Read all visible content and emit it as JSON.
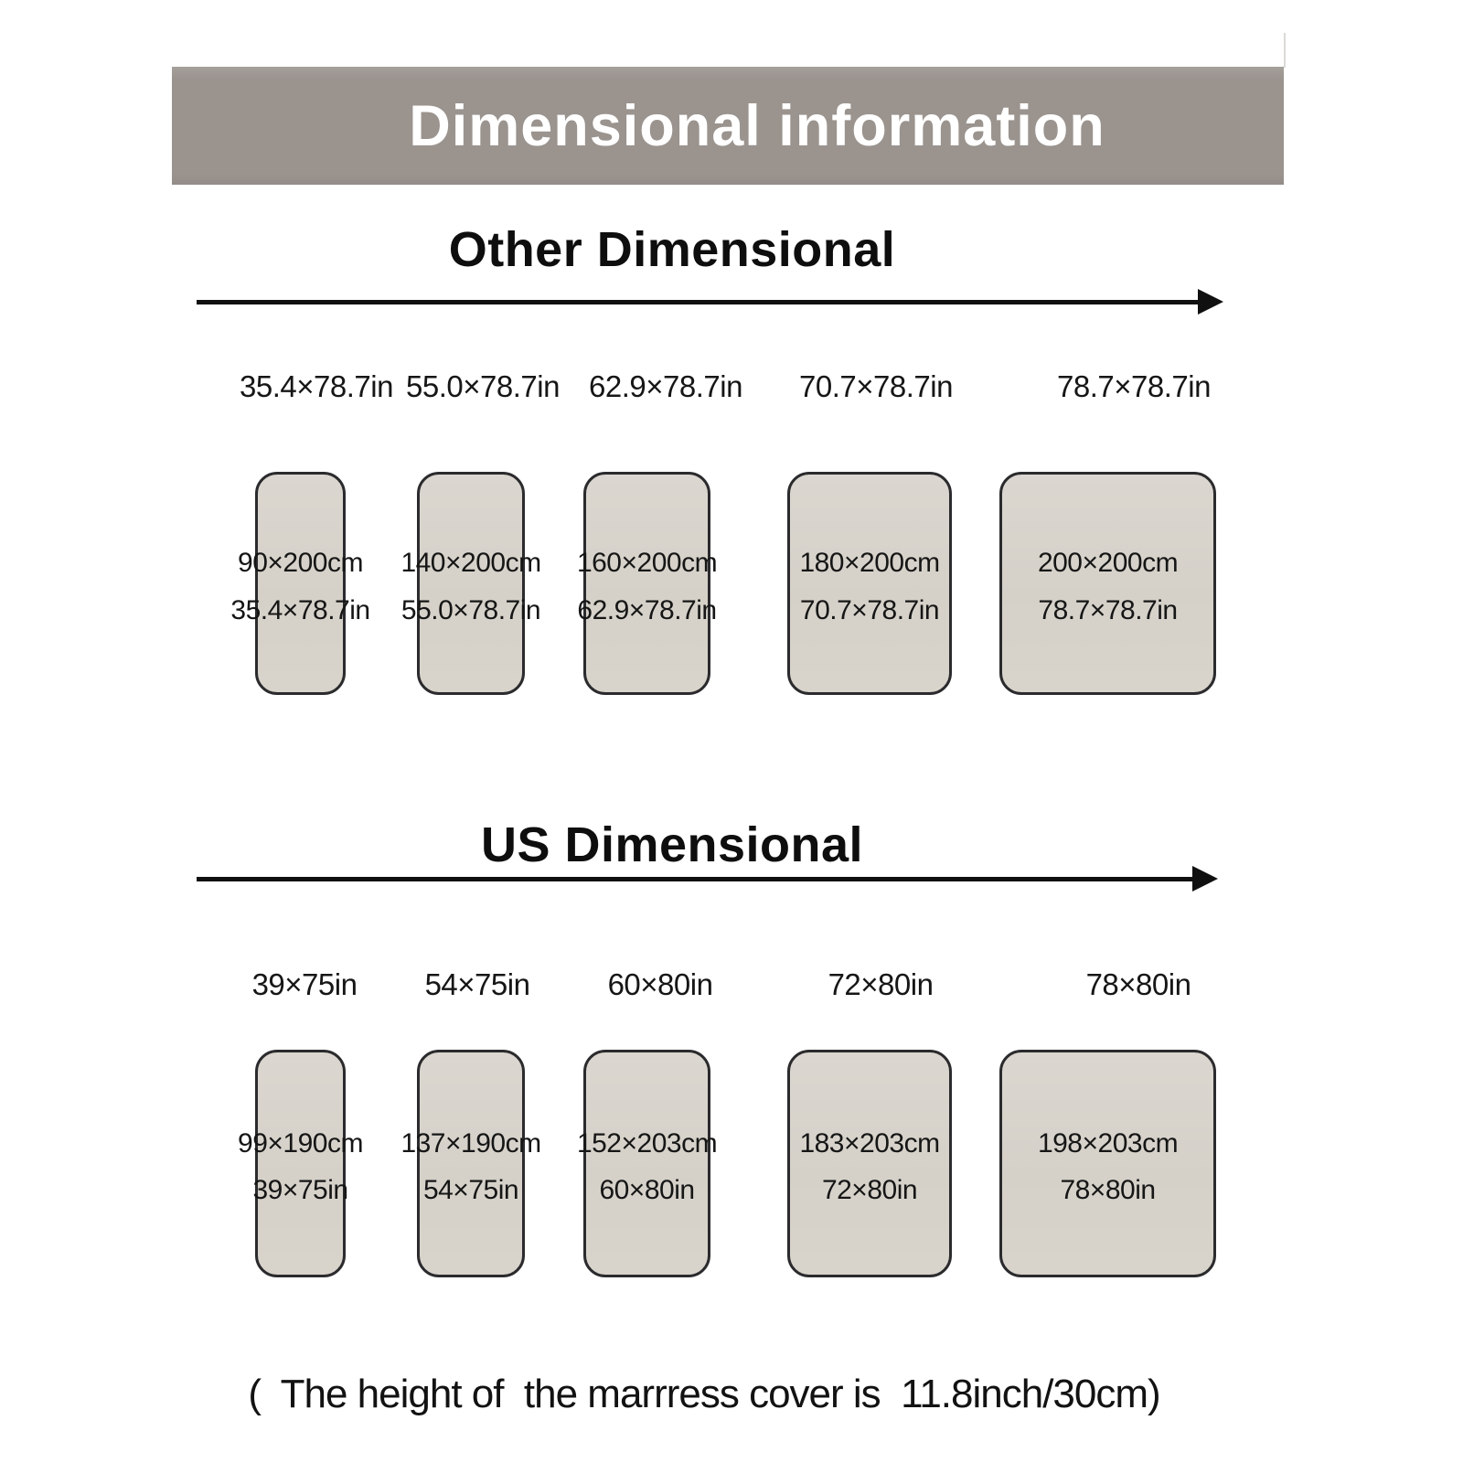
{
  "banner": {
    "title": "Dimensional information",
    "bg_color": "#9a938e",
    "text_color": "#ffffff"
  },
  "sections": [
    {
      "heading": "Other Dimensional",
      "items": [
        {
          "label": "35.4×78.7in",
          "cm": "90×200cm",
          "in": "35.4×78.7in"
        },
        {
          "label": "55.0×78.7in",
          "cm": "140×200cm",
          "in": "55.0×78.7in"
        },
        {
          "label": "62.9×78.7in",
          "cm": "160×200cm",
          "in": "62.9×78.7in"
        },
        {
          "label": "70.7×78.7in",
          "cm": "180×200cm",
          "in": "70.7×78.7in"
        },
        {
          "label": "78.7×78.7in",
          "cm": "200×200cm",
          "in": "78.7×78.7in"
        }
      ]
    },
    {
      "heading": "US Dimensional",
      "items": [
        {
          "label": "39×75in",
          "cm": "99×190cm",
          "in": "39×75in"
        },
        {
          "label": "54×75in",
          "cm": "137×190cm",
          "in": "54×75in"
        },
        {
          "label": "60×80in",
          "cm": "152×203cm",
          "in": "60×80in"
        },
        {
          "label": "72×80in",
          "cm": "183×203cm",
          "in": "72×80in"
        },
        {
          "label": "78×80in",
          "cm": "198×203cm",
          "in": "78×80in"
        }
      ]
    }
  ],
  "footnote": "(  The height of  the marrress cover is  11.8inch/30cm)",
  "colors": {
    "banner_bg": "#9a938e",
    "swatch_fill": "#d6d2ca",
    "swatch_border": "#2b2b2e",
    "text": "#141414",
    "background": "#ffffff"
  }
}
